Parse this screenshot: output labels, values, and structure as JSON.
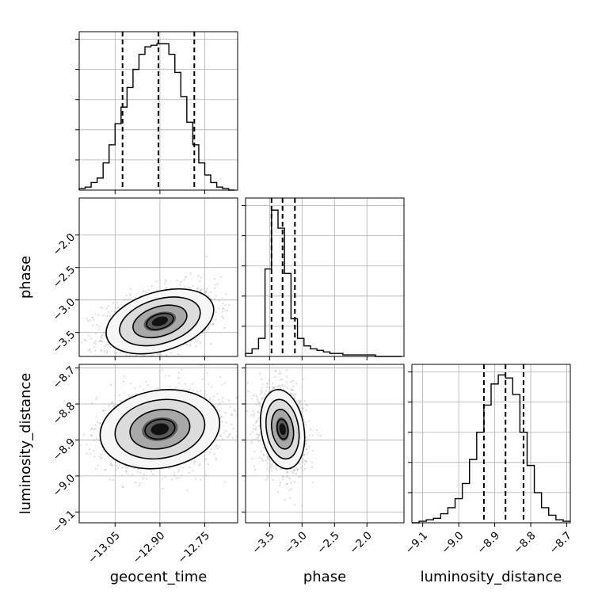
{
  "chart_data": {
    "type": "corner",
    "parameters": [
      "geocent_time",
      "phase",
      "luminosity_distance"
    ],
    "grid": true,
    "marginals": [
      {
        "parameter": "geocent_time",
        "xlim": [
          -13.17,
          -12.64
        ],
        "ylim": [
          0,
          1.05
        ],
        "ytick_count": 5,
        "quantiles": [
          -13.025,
          -12.905,
          -12.785
        ],
        "bin_edges": [
          -13.17,
          -13.15,
          -13.13,
          -13.11,
          -13.09,
          -13.07,
          -13.05,
          -13.03,
          -13.01,
          -12.99,
          -12.97,
          -12.95,
          -12.93,
          -12.91,
          -12.89,
          -12.87,
          -12.85,
          -12.83,
          -12.81,
          -12.79,
          -12.77,
          -12.75,
          -12.73,
          -12.71,
          -12.69,
          -12.67,
          -12.65
        ],
        "counts": [
          0.01,
          0.02,
          0.05,
          0.08,
          0.18,
          0.3,
          0.44,
          0.55,
          0.68,
          0.8,
          0.9,
          0.95,
          0.96,
          0.97,
          0.97,
          0.9,
          0.78,
          0.62,
          0.45,
          0.3,
          0.18,
          0.1,
          0.05,
          0.02,
          0.01,
          0.0
        ],
        "xticks": [],
        "yticks": []
      },
      {
        "parameter": "phase",
        "xlim": [
          -3.87,
          -1.43
        ],
        "ylim": [
          0,
          1.05
        ],
        "ytick_count": 5,
        "quantiles": [
          -3.47,
          -3.3,
          -3.11
        ],
        "bin_edges": [
          -3.87,
          -3.77,
          -3.67,
          -3.57,
          -3.47,
          -3.37,
          -3.27,
          -3.17,
          -3.07,
          -2.97,
          -2.87,
          -2.77,
          -2.67,
          -2.57,
          -2.47,
          -2.37,
          -2.27,
          -2.17,
          -2.07,
          -1.97,
          -1.87,
          -1.77,
          -1.67,
          -1.57,
          -1.47
        ],
        "counts": [
          0.02,
          0.05,
          0.12,
          0.58,
          0.97,
          0.85,
          0.55,
          0.25,
          0.12,
          0.07,
          0.05,
          0.04,
          0.03,
          0.02,
          0.02,
          0.01,
          0.01,
          0.01,
          0.01,
          0.01,
          0.0,
          0.0,
          0.0,
          0.0
        ],
        "xticks": [],
        "yticks": []
      },
      {
        "parameter": "luminosity_distance",
        "xlim": [
          -9.13,
          -8.69
        ],
        "ylim": [
          0,
          1.05
        ],
        "ytick_count": 5,
        "quantiles": [
          -8.93,
          -8.87,
          -8.82
        ],
        "bin_edges": [
          -9.13,
          -9.11,
          -9.09,
          -9.07,
          -9.05,
          -9.03,
          -9.01,
          -8.99,
          -8.97,
          -8.95,
          -8.93,
          -8.91,
          -8.89,
          -8.87,
          -8.85,
          -8.83,
          -8.81,
          -8.79,
          -8.77,
          -8.75,
          -8.73,
          -8.71,
          -8.69
        ],
        "counts": [
          0.0,
          0.01,
          0.02,
          0.03,
          0.06,
          0.1,
          0.16,
          0.26,
          0.42,
          0.6,
          0.78,
          0.92,
          0.98,
          0.96,
          0.85,
          0.6,
          0.38,
          0.2,
          0.1,
          0.05,
          0.02,
          0.01
        ],
        "xticks": [
          "-9.1",
          "-9.0",
          "-8.9",
          "-8.8",
          "-8.7"
        ],
        "yticks": []
      }
    ],
    "joints": [
      {
        "x_param": "geocent_time",
        "y_param": "phase",
        "xlim": [
          -13.17,
          -12.64
        ],
        "ylim": [
          -3.87,
          -1.43
        ],
        "xticks": [
          "-13.05",
          "-12.90",
          "-12.75"
        ],
        "yticks": [
          "-3.5",
          "-3.0",
          "-2.5",
          "-2.0"
        ],
        "mean": [
          -12.9,
          -3.33
        ],
        "sigma": [
          0.09,
          0.25
        ],
        "rho": 0.35,
        "contour_levels": [
          0.5,
          1.0,
          1.5,
          2.0
        ],
        "scatter_points": 1400
      },
      {
        "x_param": "geocent_time",
        "y_param": "luminosity_distance",
        "xlim": [
          -13.17,
          -12.64
        ],
        "ylim": [
          -9.13,
          -8.69
        ],
        "xticks": [],
        "yticks": [
          "-9.1",
          "-9.0",
          "-8.9",
          "-8.8",
          "-8.7"
        ],
        "mean": [
          -12.9,
          -8.87
        ],
        "sigma": [
          0.1,
          0.055
        ],
        "rho": 0.15,
        "contour_levels": [
          0.5,
          1.0,
          1.5,
          2.0
        ],
        "scatter_points": 1400
      },
      {
        "x_param": "phase",
        "y_param": "luminosity_distance",
        "xlim": [
          -3.87,
          -1.43
        ],
        "ylim": [
          -9.13,
          -8.69
        ],
        "xticks": [
          "-3.5",
          "-3.0",
          "-2.5",
          "-2.0"
        ],
        "yticks": [],
        "mean": [
          -3.3,
          -8.87
        ],
        "sigma": [
          0.17,
          0.055
        ],
        "rho": -0.2,
        "contour_levels": [
          0.5,
          1.0,
          1.5,
          2.0
        ],
        "scatter_points": 1400
      }
    ],
    "bottom_xticks": [
      [
        "-13.05",
        "-12.90",
        "-12.75"
      ],
      [
        "-3.5",
        "-3.0",
        "-2.5",
        "-2.0"
      ],
      [
        "-9.1",
        "-9.0",
        "-8.9",
        "-8.8",
        "-8.7"
      ]
    ],
    "left_yticks": [
      [
        "-3.5",
        "-3.0",
        "-2.5",
        "-2.0"
      ],
      [
        "-9.1",
        "-9.0",
        "-8.9",
        "-8.8",
        "-8.7"
      ]
    ],
    "xlabels": [
      "geocent_time",
      "phase",
      "luminosity_distance"
    ],
    "ylabels": [
      "phase",
      "luminosity_distance"
    ],
    "colors": {
      "line": "#000000",
      "grid": "#b0b0b0",
      "scatter": "#9a9a9a",
      "axes": "#000000"
    }
  }
}
